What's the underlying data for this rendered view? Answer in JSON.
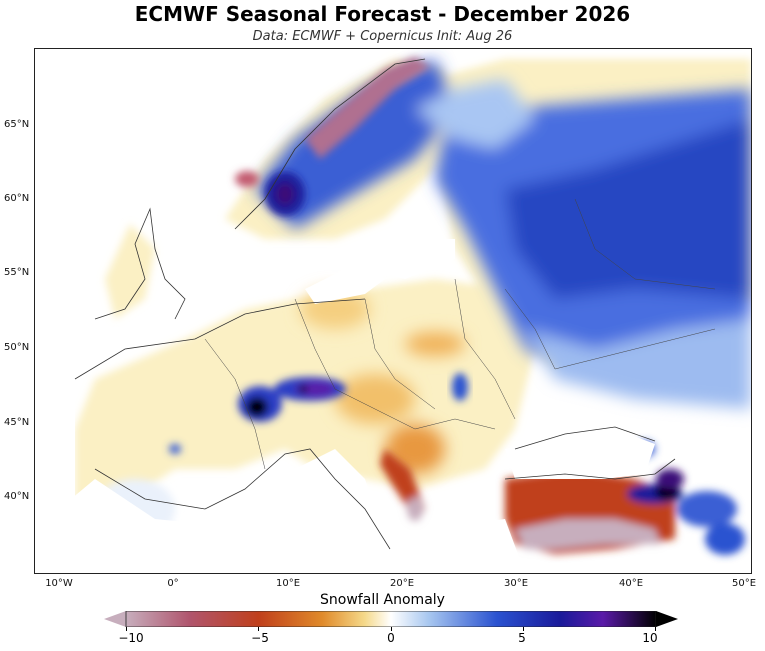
{
  "header": {
    "title": "ECMWF Seasonal Forecast - December 2026",
    "subtitle": "Data: ECMWF + Copernicus   Init: Aug 26"
  },
  "map": {
    "latitude_labels": [
      "65°N",
      "60°N",
      "55°N",
      "50°N",
      "45°N",
      "40°N"
    ],
    "longitude_labels": [
      "10°W",
      "0°",
      "10°E",
      "20°E",
      "30°E",
      "40°E",
      "50°E"
    ],
    "extent": {
      "lon_min": -12,
      "lon_max": 50,
      "lat_min": 35,
      "lat_max": 70
    },
    "field": "Snowfall anomaly",
    "regions": [
      {
        "name": "Scandinavia interior",
        "anomaly": 6
      },
      {
        "name": "Western Norway coast",
        "anomaly": 8
      },
      {
        "name": "Northern Norway coast",
        "anomaly": -8
      },
      {
        "name": "Western Russia",
        "anomaly": 5
      },
      {
        "name": "Alps",
        "anomaly": 10
      },
      {
        "name": "Caucasus",
        "anomaly": 10
      },
      {
        "name": "Eastern Turkey",
        "anomaly": -8
      },
      {
        "name": "Central Europe",
        "anomaly": -2
      },
      {
        "name": "Iberia",
        "anomaly": -1
      },
      {
        "name": "Balkans",
        "anomaly": -4
      }
    ]
  },
  "colorbar": {
    "title": "Snowfall Anomaly",
    "ticks": [
      "−10",
      "−5",
      "0",
      "5",
      "10"
    ],
    "min": -10,
    "max": 10,
    "colors": [
      "#c7aebd",
      "#b0556d",
      "#c0401c",
      "#e08a2a",
      "#f5d98a",
      "#ffffff",
      "#a9c8f0",
      "#2a52d0",
      "#1a1a9a",
      "#5a1aa8",
      "#000000"
    ]
  }
}
